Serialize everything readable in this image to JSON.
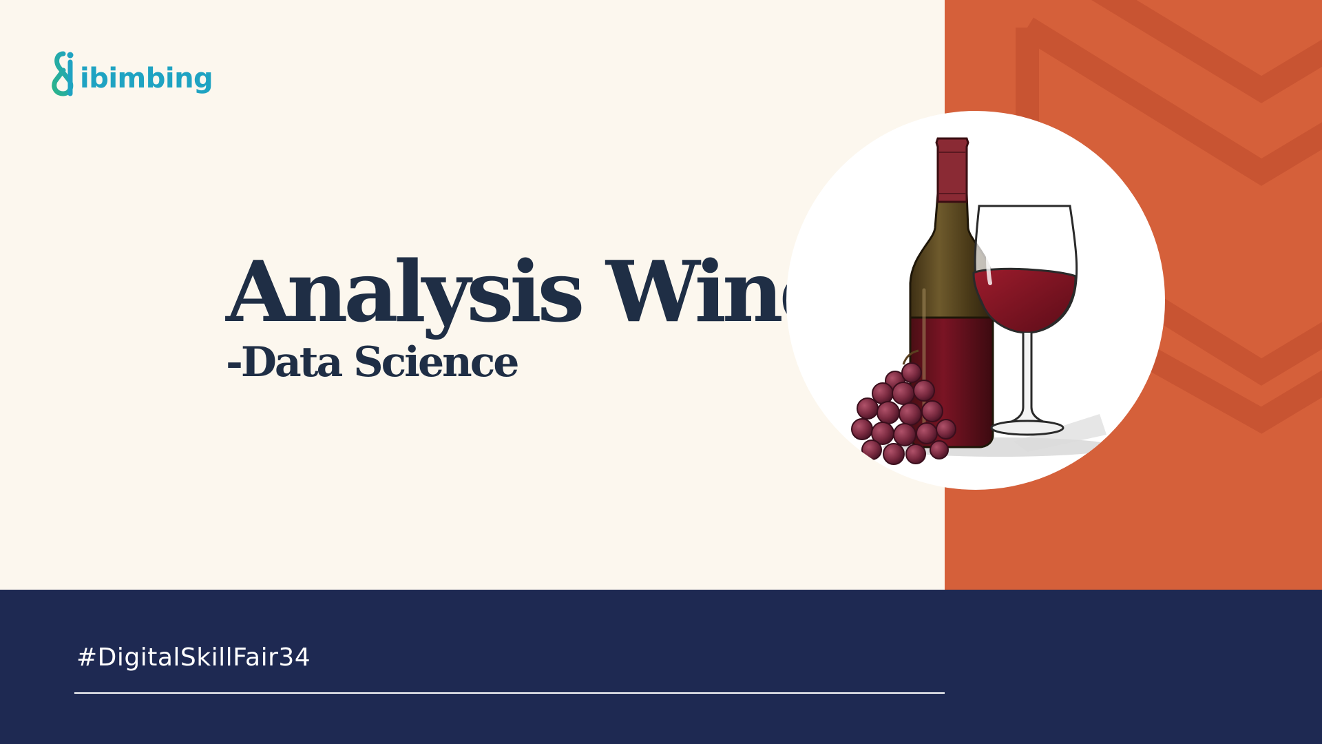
{
  "logo": {
    "text": "ibimbing",
    "color": "#1FA3C2",
    "mark_icon": "ibimbing-logo-icon"
  },
  "title": {
    "main": "Analysis Wine",
    "sub": "-Data Science"
  },
  "illustration": {
    "icon": "wine-bottle-glass-grapes-illustration"
  },
  "footer": {
    "hashtag": "#DigitalSkillFair34"
  },
  "colors": {
    "background": "#FCF7EE",
    "accent_orange": "#D5603A",
    "footer_navy": "#1E2952",
    "title_text": "#1F2E45",
    "wine_red": "#7A1424"
  }
}
